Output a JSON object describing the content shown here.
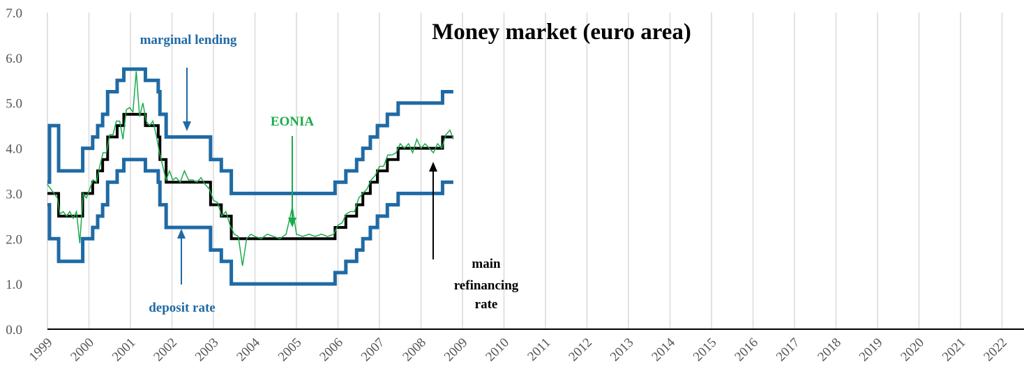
{
  "chart_data": {
    "type": "line",
    "title": "Money market (euro area)",
    "xlim": [
      1999,
      2022.53
    ],
    "xticks": [
      1999,
      2000,
      2001,
      2002,
      2003,
      2004,
      2005,
      2006,
      2007,
      2008,
      2009,
      2010,
      2011,
      2012,
      2013,
      2014,
      2015,
      2016,
      2017,
      2018,
      2019,
      2020,
      2021,
      2022
    ],
    "ylim": [
      0,
      7
    ],
    "yticks": [
      {
        "value": 0,
        "label": "0.0"
      },
      {
        "value": 1,
        "label": "1.0"
      },
      {
        "value": 2,
        "label": "2.0"
      },
      {
        "value": 3,
        "label": "3.0"
      },
      {
        "value": 4,
        "label": "4.0"
      },
      {
        "value": 5,
        "label": "5.0"
      },
      {
        "value": 6,
        "label": "6.0"
      },
      {
        "value": 7,
        "label": "7.0"
      }
    ],
    "grid": "x",
    "series": [
      {
        "color": "#1f6aa5",
        "width": 5,
        "x": [
          1999.0,
          1999.05,
          1999.05,
          1999.27,
          1999.27,
          1999.85,
          1999.85,
          2000.09,
          2000.09,
          2000.21,
          2000.21,
          2000.33,
          2000.33,
          2000.45,
          2000.45,
          2000.68,
          2000.68,
          2000.84,
          2000.84,
          2001.36,
          2001.36,
          2001.67,
          2001.67,
          2001.71,
          2001.71,
          2001.86,
          2001.86,
          2002.93,
          2002.93,
          2003.19,
          2003.19,
          2003.43,
          2003.43,
          2005.93,
          2005.93,
          2006.19,
          2006.19,
          2006.45,
          2006.45,
          2006.6,
          2006.6,
          2006.78,
          2006.78,
          2006.95,
          2006.95,
          2007.19,
          2007.19,
          2007.45,
          2007.45,
          2008.52,
          2008.52,
          2008.78
        ],
        "values": [
          3.25,
          3.25,
          4.5,
          4.5,
          3.5,
          3.5,
          4,
          4,
          4.25,
          4.25,
          4.5,
          4.5,
          4.75,
          4.75,
          5.25,
          5.25,
          5.5,
          5.5,
          5.75,
          5.75,
          5.5,
          5.5,
          5.25,
          5.25,
          4.75,
          4.75,
          4.25,
          4.25,
          3.75,
          3.75,
          3.5,
          3.5,
          3,
          3,
          3.25,
          3.25,
          3.5,
          3.5,
          3.75,
          3.75,
          4,
          4,
          4.25,
          4.25,
          4.5,
          4.5,
          4.75,
          4.75,
          5,
          5,
          5.25,
          5.25
        ]
      },
      {
        "color": "#1f6aa5",
        "width": 5,
        "x": [
          1999.0,
          1999.05,
          1999.05,
          1999.27,
          1999.27,
          1999.85,
          1999.85,
          2000.09,
          2000.09,
          2000.21,
          2000.21,
          2000.33,
          2000.33,
          2000.45,
          2000.45,
          2000.68,
          2000.68,
          2000.84,
          2000.84,
          2001.36,
          2001.36,
          2001.67,
          2001.67,
          2001.71,
          2001.71,
          2001.86,
          2001.86,
          2002.93,
          2002.93,
          2003.19,
          2003.19,
          2003.43,
          2003.43,
          2005.93,
          2005.93,
          2006.19,
          2006.19,
          2006.45,
          2006.45,
          2006.6,
          2006.6,
          2006.78,
          2006.78,
          2006.95,
          2006.95,
          2007.19,
          2007.19,
          2007.45,
          2007.45,
          2008.52,
          2008.52,
          2008.78
        ],
        "values": [
          2.75,
          2.75,
          2,
          2,
          1.5,
          1.5,
          2,
          2,
          2.25,
          2.25,
          2.5,
          2.5,
          2.75,
          2.75,
          3.25,
          3.25,
          3.5,
          3.5,
          3.75,
          3.75,
          3.5,
          3.5,
          3.25,
          3.25,
          2.75,
          2.75,
          2.25,
          2.25,
          1.75,
          1.75,
          1.5,
          1.5,
          1,
          1,
          1.25,
          1.25,
          1.5,
          1.5,
          1.75,
          1.75,
          2,
          2,
          2.25,
          2.25,
          2.5,
          2.5,
          2.75,
          2.75,
          3,
          3,
          3.25,
          3.25
        ]
      },
      {
        "color": "#000000",
        "width": 4,
        "x": [
          1999.0,
          1999.27,
          1999.27,
          1999.85,
          1999.85,
          2000.09,
          2000.09,
          2000.21,
          2000.21,
          2000.33,
          2000.33,
          2000.45,
          2000.45,
          2000.68,
          2000.68,
          2000.84,
          2000.84,
          2001.36,
          2001.36,
          2001.67,
          2001.67,
          2001.71,
          2001.71,
          2001.86,
          2001.86,
          2002.93,
          2002.93,
          2003.19,
          2003.19,
          2003.43,
          2003.43,
          2005.93,
          2005.93,
          2006.19,
          2006.19,
          2006.45,
          2006.45,
          2006.6,
          2006.6,
          2006.78,
          2006.78,
          2006.95,
          2006.95,
          2007.19,
          2007.19,
          2007.45,
          2007.45,
          2008.52,
          2008.52,
          2008.78
        ],
        "values": [
          3,
          3,
          2.5,
          2.5,
          3,
          3,
          3.25,
          3.25,
          3.5,
          3.5,
          3.75,
          3.75,
          4.25,
          4.25,
          4.5,
          4.5,
          4.75,
          4.75,
          4.5,
          4.5,
          4.25,
          4.25,
          3.75,
          3.75,
          3.25,
          3.25,
          2.75,
          2.75,
          2.5,
          2.5,
          2,
          2,
          2.25,
          2.25,
          2.5,
          2.5,
          2.75,
          2.75,
          3,
          3,
          3.25,
          3.25,
          3.5,
          3.5,
          3.75,
          3.75,
          4,
          4,
          4.25,
          4.25
        ]
      },
      {
        "color": "#1aaa4a",
        "width": 1.5,
        "x": [
          1999.0,
          1999.08,
          1999.16,
          1999.24,
          1999.3,
          1999.38,
          1999.46,
          1999.54,
          1999.62,
          1999.7,
          1999.78,
          1999.86,
          1999.94,
          2000.02,
          2000.1,
          2000.18,
          2000.26,
          2000.34,
          2000.42,
          2000.5,
          2000.58,
          2000.66,
          2000.74,
          2000.82,
          2000.9,
          2000.98,
          2001.06,
          2001.14,
          2001.22,
          2001.3,
          2001.38,
          2001.46,
          2001.54,
          2001.62,
          2001.7,
          2001.78,
          2001.86,
          2001.94,
          2002.02,
          2002.1,
          2002.2,
          2002.3,
          2002.4,
          2002.5,
          2002.6,
          2002.7,
          2002.8,
          2002.9,
          2003.0,
          2003.1,
          2003.2,
          2003.3,
          2003.4,
          2003.5,
          2003.6,
          2003.7,
          2003.8,
          2003.9,
          2004.0,
          2004.15,
          2004.3,
          2004.45,
          2004.6,
          2004.75,
          2004.9,
          2005.0,
          2005.15,
          2005.3,
          2005.45,
          2005.6,
          2005.75,
          2005.9,
          2006.0,
          2006.1,
          2006.2,
          2006.3,
          2006.4,
          2006.5,
          2006.6,
          2006.7,
          2006.8,
          2006.9,
          2007.0,
          2007.1,
          2007.2,
          2007.3,
          2007.4,
          2007.5,
          2007.6,
          2007.7,
          2007.8,
          2007.9,
          2008.0,
          2008.1,
          2008.2,
          2008.3,
          2008.4,
          2008.5,
          2008.6,
          2008.7,
          2008.78
        ],
        "values": [
          3.2,
          3.1,
          3.0,
          2.9,
          2.55,
          2.6,
          2.5,
          2.6,
          2.45,
          2.6,
          1.9,
          3.0,
          2.9,
          3.1,
          3.3,
          3.25,
          3.6,
          3.9,
          3.9,
          4.3,
          4.3,
          4.6,
          4.6,
          4.2,
          4.85,
          4.9,
          4.8,
          5.7,
          4.7,
          5.0,
          4.6,
          4.5,
          4.6,
          4.3,
          3.9,
          3.6,
          3.3,
          3.5,
          3.3,
          3.35,
          3.25,
          3.5,
          3.3,
          3.3,
          3.25,
          3.35,
          3.2,
          3.1,
          2.85,
          2.8,
          2.5,
          2.6,
          2.3,
          2.1,
          2.05,
          1.4,
          2.0,
          2.1,
          2.05,
          2.0,
          2.1,
          2.05,
          2.0,
          2.1,
          2.7,
          2.1,
          2.05,
          2.1,
          2.05,
          2.1,
          2.05,
          2.1,
          2.3,
          2.35,
          2.55,
          2.6,
          2.6,
          2.9,
          3.0,
          3.1,
          3.3,
          3.4,
          3.6,
          3.6,
          3.85,
          3.85,
          3.9,
          4.1,
          4.0,
          4.1,
          3.9,
          4.2,
          4.0,
          4.1,
          4.0,
          3.9,
          4.1,
          4.0,
          4.3,
          4.4,
          4.2
        ]
      }
    ],
    "annotations": {
      "marginal_lending": "marginal lending",
      "eonia": "EONIA",
      "deposit_rate": "deposit rate",
      "main_refinancing_rate": [
        "main",
        "refinancing",
        "rate"
      ]
    }
  }
}
